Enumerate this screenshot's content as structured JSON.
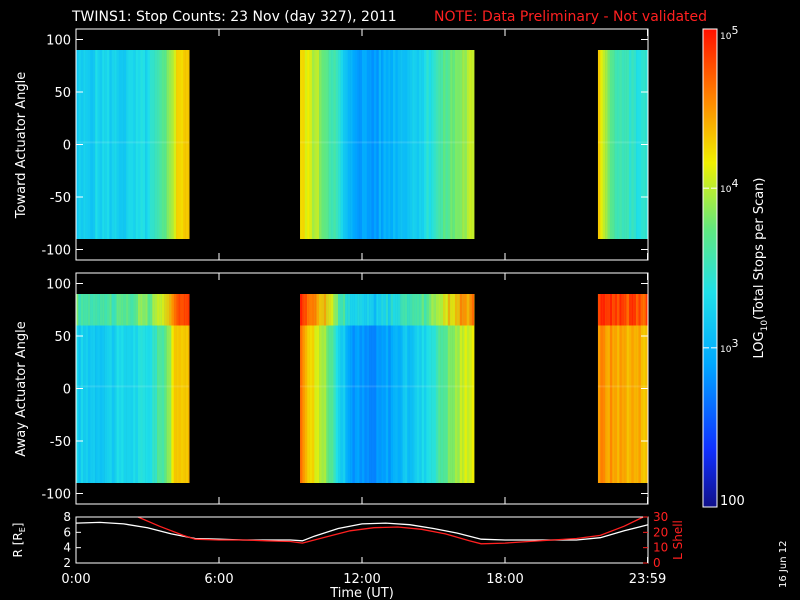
{
  "header": {
    "title": "TWINS1: Stop Counts: 23 Nov (day 327), 2011",
    "note": "NOTE: Data Preliminary - Not validated",
    "note_color": "#ff2020"
  },
  "side_date": "16 Jun 12",
  "chart_data": [
    {
      "type": "heatmap",
      "ylabel": "Toward Actuator Angle",
      "ylim": [
        -110,
        110
      ],
      "yticks": [
        "100",
        "50",
        "0",
        "-50",
        "-100"
      ],
      "ytick_values": [
        100,
        50,
        0,
        -50,
        -100
      ],
      "angle_range": [
        -90,
        90
      ],
      "data_intervals_hours": [
        [
          0.0,
          4.75
        ],
        [
          9.4,
          16.7
        ],
        [
          21.9,
          23.98
        ]
      ],
      "color_profile_hours": [
        [
          0.0,
          0.38
        ],
        [
          1.0,
          0.42
        ],
        [
          2.0,
          0.4
        ],
        [
          3.0,
          0.44
        ],
        [
          3.7,
          0.55
        ],
        [
          4.1,
          0.72
        ],
        [
          4.5,
          0.78
        ],
        [
          9.4,
          0.74
        ],
        [
          10.0,
          0.66
        ],
        [
          10.8,
          0.52
        ],
        [
          11.4,
          0.32
        ],
        [
          12.4,
          0.28
        ],
        [
          13.5,
          0.36
        ],
        [
          14.5,
          0.43
        ],
        [
          15.5,
          0.56
        ],
        [
          16.5,
          0.66
        ],
        [
          21.9,
          0.76
        ],
        [
          22.5,
          0.55
        ],
        [
          23.5,
          0.46
        ]
      ]
    },
    {
      "type": "heatmap",
      "ylabel": "Away Actuator Angle",
      "ylim": [
        -110,
        110
      ],
      "yticks": [
        "100",
        "50",
        "0",
        "-50",
        "-100"
      ],
      "ytick_values": [
        100,
        50,
        0,
        -50,
        -100
      ],
      "angle_range": [
        -90,
        90
      ],
      "data_intervals_hours": [
        [
          0.0,
          4.75
        ],
        [
          9.4,
          16.7
        ],
        [
          21.9,
          23.98
        ]
      ],
      "color_profile_hours": [
        [
          0.0,
          0.4
        ],
        [
          1.0,
          0.4
        ],
        [
          2.0,
          0.42
        ],
        [
          3.0,
          0.45
        ],
        [
          3.7,
          0.58
        ],
        [
          4.1,
          0.74
        ],
        [
          4.5,
          0.8
        ],
        [
          9.4,
          0.86
        ],
        [
          10.0,
          0.72
        ],
        [
          10.8,
          0.52
        ],
        [
          11.4,
          0.3
        ],
        [
          12.4,
          0.24
        ],
        [
          13.5,
          0.34
        ],
        [
          14.5,
          0.42
        ],
        [
          15.5,
          0.58
        ],
        [
          16.5,
          0.72
        ],
        [
          21.9,
          0.84
        ],
        [
          22.5,
          0.82
        ],
        [
          23.5,
          0.8
        ]
      ],
      "high_band_angle_range": [
        60,
        90
      ]
    },
    {
      "type": "line",
      "xlabel": "Time (UT)",
      "xticks": [
        "0:00",
        "6:00",
        "12:00",
        "18:00",
        "23:59"
      ],
      "xtick_hours": [
        0,
        6,
        12,
        18,
        23.98
      ],
      "xlim": [
        0,
        24
      ],
      "ylabel_left": "R [RE]",
      "ylabel_left_main": "R [R",
      "ylabel_left_sub": "E",
      "ylabel_left_end": "]",
      "ylim_left": [
        2,
        8
      ],
      "yticks_left": [
        "8",
        "6",
        "4",
        "2"
      ],
      "ytick_left_values": [
        8,
        6,
        4,
        2
      ],
      "ylabel_right": "L Shell",
      "ylim_right": [
        0,
        30
      ],
      "yticks_right": [
        "30",
        "20",
        "10",
        "0"
      ],
      "ytick_right_values": [
        30,
        20,
        10,
        0
      ],
      "series": [
        {
          "axis": "left",
          "color": "#ffffff",
          "x": [
            0,
            1,
            2,
            3,
            4,
            5,
            6,
            7,
            8,
            9,
            9.5,
            10,
            11,
            12,
            13,
            14,
            15,
            16,
            17,
            18,
            19,
            20,
            21,
            22,
            23,
            24
          ],
          "y": [
            7.2,
            7.3,
            7.1,
            6.6,
            5.8,
            5.2,
            5.1,
            5.0,
            5.0,
            5.0,
            4.9,
            5.5,
            6.5,
            7.1,
            7.2,
            7.0,
            6.5,
            5.9,
            5.1,
            5.0,
            5.0,
            5.0,
            5.0,
            5.3,
            6.2,
            7.0
          ]
        },
        {
          "axis": "right",
          "color": "#ff2020",
          "x": [
            2.6,
            3.5,
            4.5,
            5.0,
            6.0,
            7.0,
            8.0,
            9.0,
            9.5,
            10.5,
            11.5,
            12.5,
            13.5,
            14.5,
            15.5,
            16.5,
            17.0,
            18.0,
            19.0,
            20.0,
            21.0,
            22.0,
            23.0,
            23.8
          ],
          "y": [
            30,
            24,
            18,
            15.5,
            15,
            15,
            14.5,
            14,
            13,
            17,
            21,
            23,
            23.5,
            22,
            19,
            14.5,
            12.5,
            13,
            14,
            15,
            16,
            18,
            24,
            30
          ]
        }
      ]
    }
  ],
  "colorbar": {
    "label_main": "LOG",
    "label_sub": "10",
    "label_rest": "(Total Stops per Scan)",
    "ticks": [
      {
        "base": "10",
        "exp": "5",
        "frac": 0.0
      },
      {
        "base": "10",
        "exp": "4",
        "frac": 0.333
      },
      {
        "base": "10",
        "exp": "3",
        "frac": 0.667
      },
      {
        "base": "100",
        "exp": "",
        "frac": 1.0
      }
    ]
  }
}
